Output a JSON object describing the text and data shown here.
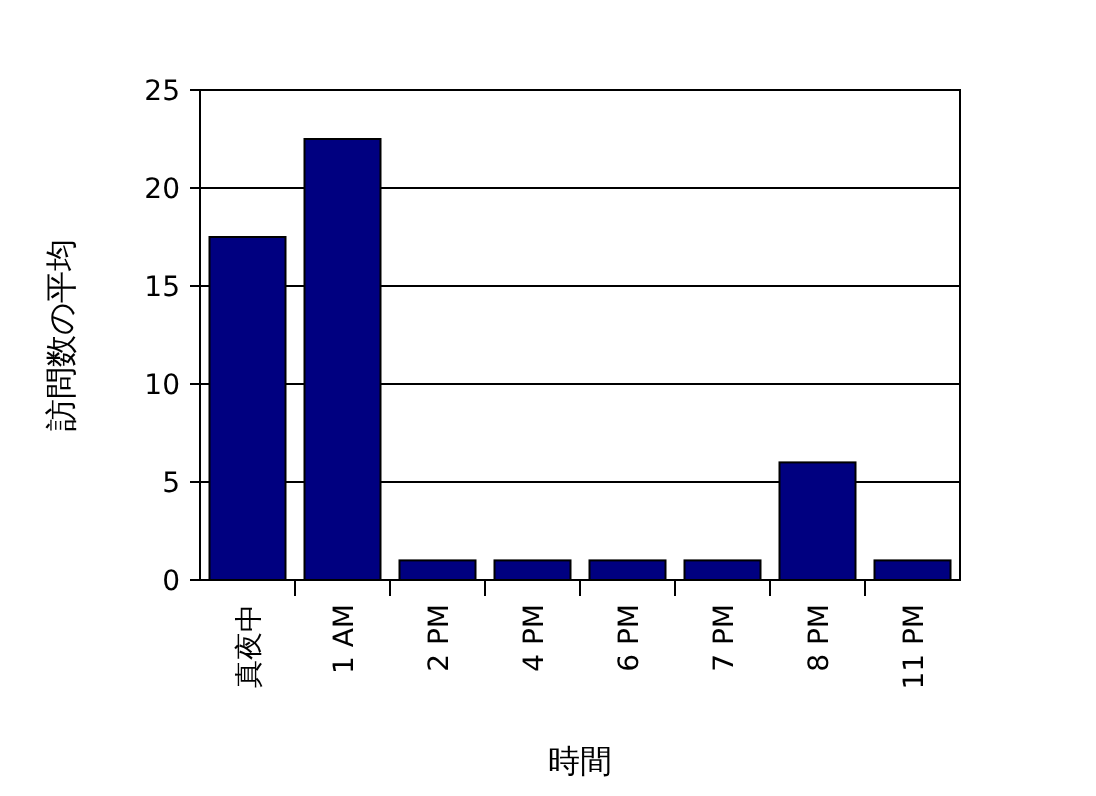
{
  "chart_data": {
    "type": "bar",
    "xlabel": "時間",
    "ylabel": "訪問数の平均",
    "categories": [
      "真夜中",
      "1 AM",
      "2 PM",
      "4 PM",
      "6 PM",
      "7 PM",
      "8 PM",
      "11 PM"
    ],
    "values": [
      17.5,
      22.5,
      1,
      1,
      1,
      1,
      6,
      1
    ],
    "color": "#000080",
    "ylim": [
      0,
      25
    ],
    "yticks": [
      0,
      5,
      10,
      15,
      20,
      25
    ],
    "grid": "y"
  }
}
